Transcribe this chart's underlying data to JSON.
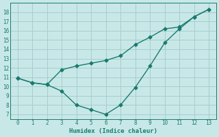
{
  "line1_x": [
    0,
    1,
    2,
    3,
    4,
    5,
    6,
    7,
    8,
    9,
    10,
    11,
    12,
    13
  ],
  "line1_y": [
    10.9,
    10.4,
    10.2,
    11.8,
    12.2,
    12.5,
    12.8,
    13.3,
    14.5,
    15.3,
    16.2,
    16.4,
    17.5,
    18.3
  ],
  "line2_x": [
    0,
    1,
    2,
    3,
    4,
    5,
    6,
    7,
    8,
    9,
    10,
    11,
    12,
    13
  ],
  "line2_y": [
    10.9,
    10.4,
    10.2,
    9.5,
    8.0,
    7.5,
    7.0,
    8.0,
    9.9,
    12.2,
    14.7,
    16.2,
    17.5,
    18.3
  ],
  "line_color": "#1a7a6e",
  "bg_color": "#c8e8e8",
  "grid_color": "#a8cccc",
  "xlabel": "Humidex (Indice chaleur)",
  "ylim": [
    6.5,
    19.0
  ],
  "xlim": [
    -0.5,
    13.5
  ],
  "yticks": [
    7,
    8,
    9,
    10,
    11,
    12,
    13,
    14,
    15,
    16,
    17,
    18
  ],
  "xticks": [
    0,
    1,
    2,
    3,
    4,
    5,
    6,
    7,
    8,
    9,
    10,
    11,
    12,
    13
  ],
  "marker": "D",
  "markersize": 2.5,
  "linewidth": 1.0
}
